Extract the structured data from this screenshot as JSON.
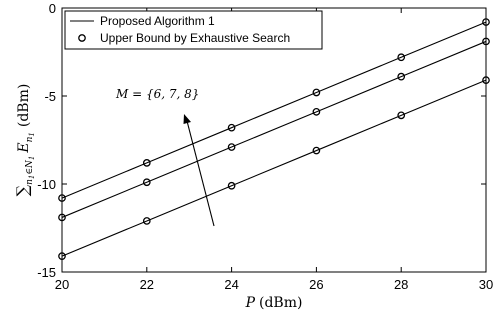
{
  "chart_data": {
    "type": "line",
    "xlabel": "P (dBm)",
    "ylabel": "∑ n1∈N1 En1 (dBm)",
    "xlim": [
      20,
      30
    ],
    "ylim": [
      -15,
      0
    ],
    "xticks": [
      20,
      22,
      24,
      26,
      28,
      30
    ],
    "yticks": [
      0,
      -5,
      -10,
      -15
    ],
    "x": [
      20,
      22,
      24,
      26,
      28,
      30
    ],
    "series": [
      {
        "name": "M=6",
        "values": [
          -10.8,
          -8.8,
          -6.8,
          -4.8,
          -2.8,
          -0.8
        ]
      },
      {
        "name": "M=7",
        "values": [
          -11.9,
          -9.9,
          -7.9,
          -5.9,
          -3.9,
          -1.9
        ]
      },
      {
        "name": "M=8",
        "values": [
          -14.1,
          -12.1,
          -10.1,
          -8.1,
          -6.1,
          -4.1
        ]
      }
    ],
    "legend": {
      "position": "top-left",
      "entries": [
        {
          "label": "Proposed Algorithm 1",
          "style": "line"
        },
        {
          "label": "Upper Bound by Exhaustive Search",
          "style": "circle"
        }
      ]
    },
    "annotation": {
      "text": "M = {6, 7, 8}"
    },
    "grid": false,
    "colors": {
      "line": "#000000",
      "marker": "#000000"
    }
  }
}
